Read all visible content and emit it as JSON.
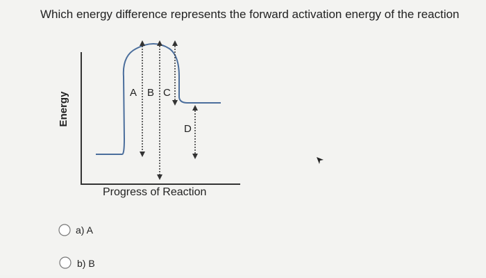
{
  "question": "Which energy difference represents the forward activation energy of the reaction",
  "diagram": {
    "y_axis_label": "Energy",
    "x_axis_label": "Progress of Reaction",
    "labels": [
      "A",
      "B",
      "C",
      "D"
    ]
  },
  "options": [
    "a) A",
    "b) B"
  ]
}
